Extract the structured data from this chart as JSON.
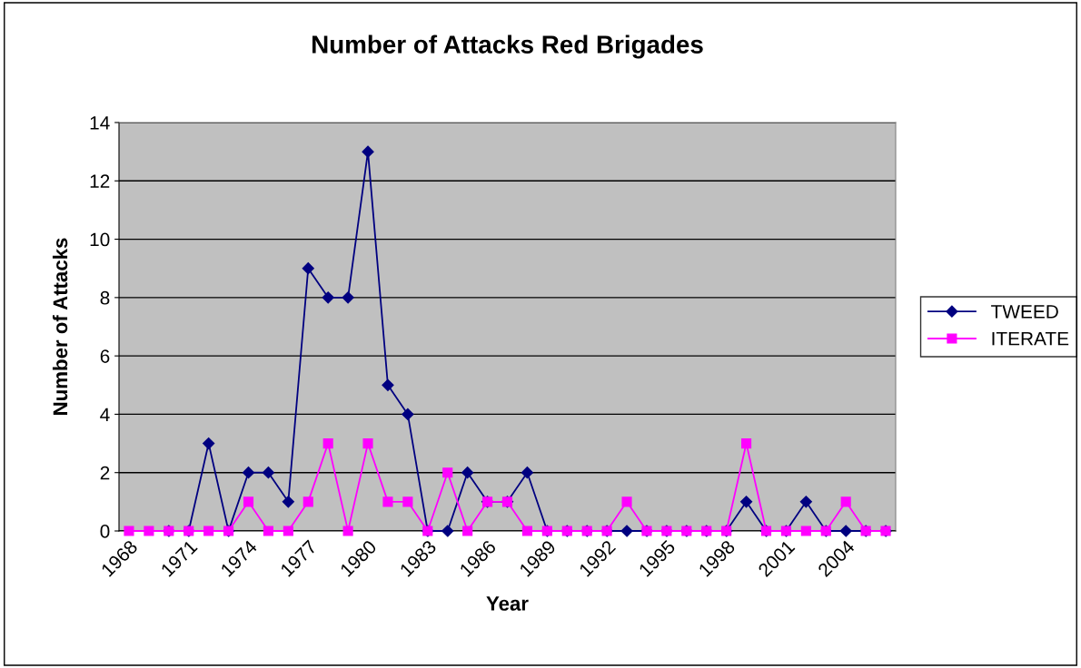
{
  "chart_data": {
    "type": "line",
    "title": "Number of Attacks Red Brigades",
    "xlabel": "Year",
    "ylabel": "Number of Attacks",
    "categories": [
      "1968",
      null,
      null,
      "1971",
      null,
      null,
      "1974",
      null,
      null,
      "1977",
      null,
      null,
      "1980",
      null,
      null,
      "1983",
      null,
      null,
      "1986",
      null,
      null,
      "1989",
      null,
      null,
      "1992",
      null,
      null,
      "1995",
      null,
      null,
      "1998",
      null,
      null,
      "2001",
      null,
      null,
      "2004",
      null,
      null
    ],
    "series": [
      {
        "name": "TWEED",
        "color": "#000080",
        "marker": "diamond",
        "values": [
          null,
          null,
          0,
          0,
          3,
          0,
          2,
          2,
          1,
          9,
          8,
          8,
          13,
          5,
          4,
          0,
          0,
          2,
          1,
          1,
          2,
          0,
          0,
          0,
          0,
          0,
          0,
          0,
          0,
          0,
          0,
          1,
          0,
          0,
          1,
          0,
          0,
          0,
          0
        ]
      },
      {
        "name": "ITERATE",
        "color": "#ff00ff",
        "marker": "square",
        "values": [
          0,
          0,
          0,
          0,
          0,
          0,
          1,
          0,
          0,
          1,
          3,
          0,
          3,
          1,
          1,
          0,
          2,
          0,
          1,
          1,
          0,
          0,
          0,
          0,
          0,
          1,
          0,
          0,
          0,
          0,
          0,
          3,
          0,
          0,
          0,
          0,
          1,
          0,
          0
        ]
      }
    ],
    "ylim": [
      0,
      14
    ],
    "yticks": [
      0,
      2,
      4,
      6,
      8,
      10,
      12,
      14
    ],
    "grid": "y",
    "legend": "right"
  }
}
